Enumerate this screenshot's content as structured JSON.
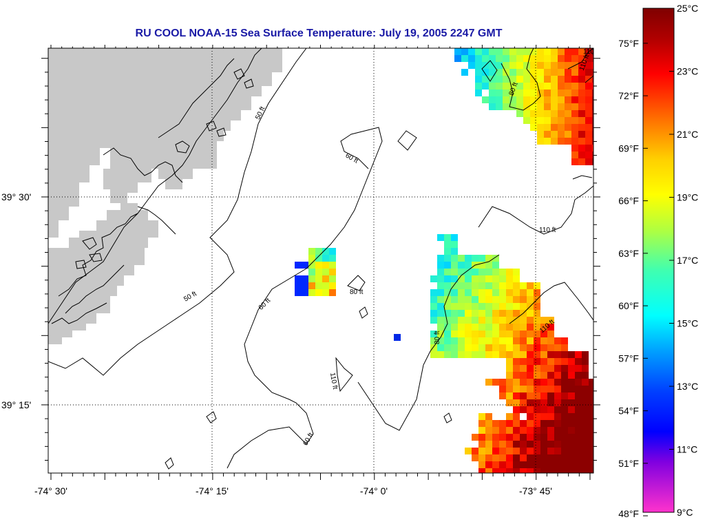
{
  "title": "RU COOL  NOAA-15  Sea Surface Temperature:  July 19, 2005 2247 GMT",
  "x_axis_labels": [
    "-74° 30'",
    "-74° 15'",
    "-74° 0'",
    "-73° 45'"
  ],
  "y_axis_labels": [
    "39° 30'",
    "39° 15'"
  ],
  "contour_labels": [
    "50 ft",
    "50 ft",
    "60 ft",
    "60 ft",
    "60 ft",
    "80 ft",
    "80 ft",
    "80 ft",
    "110 ft",
    "110 ft",
    "110 ft",
    "110 ft",
    "110 ft"
  ],
  "colorbar": {
    "celsius_labels": [
      "25°C",
      "23°C",
      "21°C",
      "19°C",
      "17°C",
      "15°C",
      "13°C",
      "11°C",
      "9°C"
    ],
    "fahrenheit_labels": [
      "75°F",
      "72°F",
      "69°F",
      "66°F",
      "63°F",
      "60°F",
      "57°F",
      "54°F",
      "51°F",
      "48°F"
    ],
    "celsius_values": [
      25,
      23,
      21,
      19,
      17,
      15,
      13,
      11,
      9
    ],
    "fahrenheit_values": [
      75,
      72,
      69,
      66,
      63,
      60,
      57,
      54,
      51,
      48
    ],
    "range_celsius": [
      9,
      25
    ]
  },
  "colors": {
    "land": "#c8c8c8",
    "title": "#1a1aa6",
    "grid": "#000000"
  }
}
